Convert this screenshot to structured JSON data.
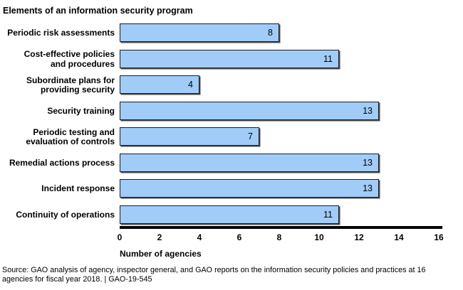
{
  "title": "Elements of an information security program",
  "chart_data": {
    "type": "bar",
    "orientation": "horizontal",
    "title": "Elements of an information security program",
    "categories": [
      "Periodic risk assessments",
      "Cost-effective policies\nand procedures",
      "Subordinate plans for\nproviding security",
      "Security training",
      "Periodic testing and\nevaluation of controls",
      "Remedial actions process",
      "Incident response",
      "Continuity of operations"
    ],
    "values": [
      8,
      11,
      4,
      13,
      7,
      13,
      13,
      11
    ],
    "xlabel": "Number of agencies",
    "ylabel": "",
    "xlim": [
      0,
      16
    ],
    "xticks": [
      0,
      2,
      4,
      6,
      8,
      10,
      12,
      14,
      16
    ],
    "grid": false,
    "legend": "none",
    "bar_color": "#A1CCF7",
    "bar_border_color": "#1c1c1c",
    "axis_color": "#000000"
  },
  "source": {
    "text": "Source: GAO analysis of agency, inspector general, and GAO reports on the information security policies and practices at 16\nagencies for fiscal year 2018.  |  GAO-19-545"
  }
}
